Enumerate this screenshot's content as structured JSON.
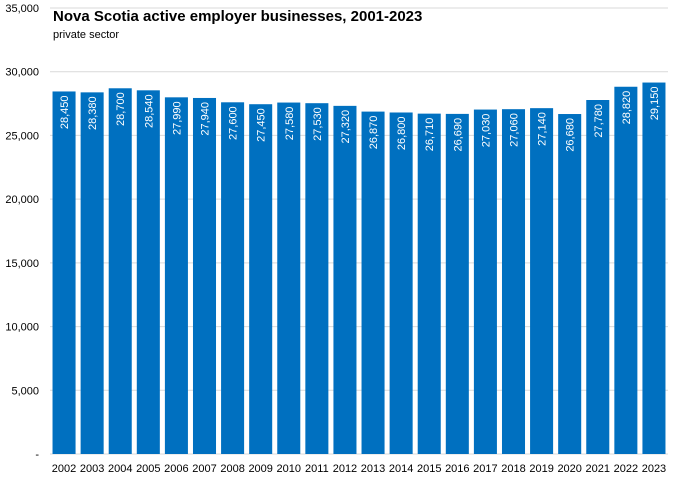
{
  "chart_data": {
    "type": "bar",
    "title": "Nova Scotia active employer businesses,  2001-2023",
    "subtitle": "private sector",
    "xlabel": "",
    "ylabel": "",
    "categories": [
      "2002",
      "2003",
      "2004",
      "2005",
      "2006",
      "2007",
      "2008",
      "2009",
      "2010",
      "2011",
      "2012",
      "2013",
      "2014",
      "2015",
      "2016",
      "2017",
      "2018",
      "2019",
      "2020",
      "2021",
      "2022",
      "2023"
    ],
    "values": [
      28450,
      28380,
      28700,
      28540,
      27990,
      27940,
      27600,
      27450,
      27580,
      27530,
      27320,
      26870,
      26800,
      26710,
      26690,
      27030,
      27060,
      27140,
      26680,
      27780,
      28820,
      29150
    ],
    "data_labels": [
      "28,450",
      "28,380",
      "28,700",
      "28,540",
      "27,990",
      "27,940",
      "27,600",
      "27,450",
      "27,580",
      "27,530",
      "27,320",
      "26,870",
      "26,800",
      "26,710",
      "26,690",
      "27,030",
      "27,060",
      "27,140",
      "26,680",
      "27,780",
      "28,820",
      "29,150"
    ],
    "ylim": [
      0,
      35000
    ],
    "y_ticks": [
      0,
      5000,
      10000,
      15000,
      20000,
      25000,
      30000,
      35000
    ],
    "y_tick_labels": [
      "-",
      "5,000",
      "10,000",
      "15,000",
      "20,000",
      "25,000",
      "30,000",
      "35,000"
    ],
    "grid": "horizontal",
    "legend": "none",
    "bar_color": "#0070C0",
    "label_color": "#ffffff",
    "gridline_color": "#d9d9d9"
  }
}
